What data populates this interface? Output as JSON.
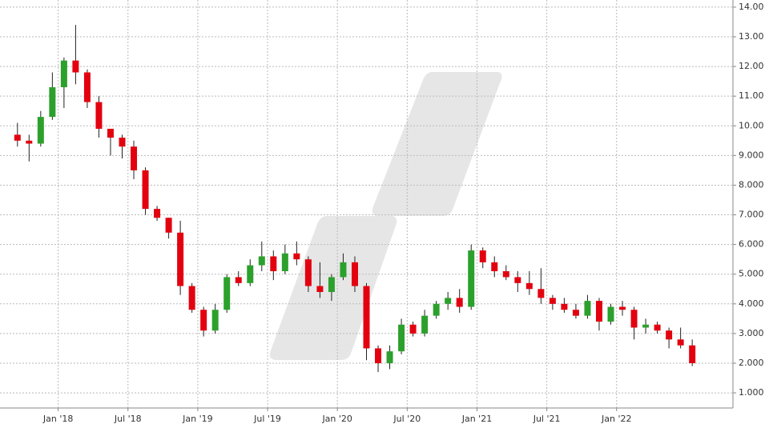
{
  "chart_data": {
    "type": "candlestick",
    "x": [
      "2017-09",
      "2017-10",
      "2017-11",
      "2017-12",
      "2018-01",
      "2018-02",
      "2018-03",
      "2018-04",
      "2018-05",
      "2018-06",
      "2018-07",
      "2018-08",
      "2018-09",
      "2018-10",
      "2018-11",
      "2018-12",
      "2019-01",
      "2019-02",
      "2019-03",
      "2019-04",
      "2019-05",
      "2019-06",
      "2019-07",
      "2019-08",
      "2019-09",
      "2019-10",
      "2019-11",
      "2019-12",
      "2020-01",
      "2020-02",
      "2020-03",
      "2020-04",
      "2020-05",
      "2020-06",
      "2020-07",
      "2020-08",
      "2020-09",
      "2020-10",
      "2020-11",
      "2020-12",
      "2021-01",
      "2021-02",
      "2021-03",
      "2021-04",
      "2021-05",
      "2021-06",
      "2021-07",
      "2021-08",
      "2021-09",
      "2021-10",
      "2021-11",
      "2021-12",
      "2022-01",
      "2022-02",
      "2022-03",
      "2022-04",
      "2022-05",
      "2022-06",
      "2022-07"
    ],
    "open": [
      9.7,
      9.5,
      9.4,
      10.3,
      11.3,
      12.2,
      11.8,
      10.8,
      9.9,
      9.6,
      9.3,
      8.5,
      7.2,
      6.9,
      6.4,
      4.6,
      3.8,
      3.1,
      3.8,
      4.9,
      4.7,
      5.3,
      5.6,
      5.1,
      5.7,
      5.5,
      4.6,
      4.4,
      4.9,
      5.4,
      4.6,
      2.5,
      2.0,
      2.4,
      3.3,
      3.0,
      3.6,
      4.0,
      4.2,
      3.9,
      5.8,
      5.4,
      5.1,
      4.9,
      4.7,
      4.5,
      4.2,
      4.0,
      3.8,
      3.6,
      4.1,
      3.4,
      3.9,
      3.8,
      3.2,
      3.3,
      3.1,
      2.8,
      2.6
    ],
    "high": [
      10.1,
      9.7,
      10.5,
      11.8,
      12.3,
      13.4,
      11.9,
      11.0,
      9.9,
      9.7,
      9.5,
      8.6,
      7.3,
      6.9,
      6.8,
      4.7,
      3.9,
      4.0,
      5.0,
      5.1,
      5.5,
      6.1,
      5.8,
      6.0,
      6.1,
      5.6,
      5.4,
      5.0,
      5.7,
      5.6,
      4.7,
      2.6,
      2.6,
      3.5,
      3.4,
      3.8,
      4.1,
      4.4,
      4.5,
      6.0,
      5.9,
      5.6,
      5.3,
      5.1,
      5.1,
      5.2,
      4.3,
      4.2,
      4.0,
      4.3,
      4.2,
      4.0,
      4.1,
      3.9,
      3.5,
      3.4,
      3.2,
      3.2,
      2.8
    ],
    "low": [
      9.3,
      8.8,
      9.3,
      10.2,
      10.6,
      11.4,
      10.6,
      9.6,
      9.0,
      8.9,
      8.2,
      7.0,
      6.8,
      6.2,
      4.3,
      3.7,
      2.9,
      3.0,
      3.7,
      4.6,
      4.6,
      5.1,
      4.8,
      5.0,
      5.3,
      4.4,
      4.2,
      4.1,
      4.8,
      4.4,
      2.1,
      1.7,
      1.8,
      2.3,
      2.9,
      2.9,
      3.5,
      3.8,
      3.7,
      3.8,
      5.2,
      4.9,
      4.8,
      4.4,
      4.3,
      4.0,
      3.8,
      3.7,
      3.5,
      3.5,
      3.1,
      3.3,
      3.6,
      2.8,
      3.0,
      3.0,
      2.5,
      2.5,
      1.9
    ],
    "close": [
      9.5,
      9.4,
      10.3,
      11.3,
      12.2,
      11.8,
      10.8,
      9.9,
      9.6,
      9.3,
      8.5,
      7.2,
      6.9,
      6.4,
      4.6,
      3.8,
      3.1,
      3.8,
      4.9,
      4.7,
      5.3,
      5.6,
      5.1,
      5.7,
      5.5,
      4.6,
      4.4,
      4.9,
      5.4,
      4.6,
      2.5,
      2.0,
      2.4,
      3.3,
      3.0,
      3.6,
      4.0,
      4.2,
      3.9,
      5.8,
      5.4,
      5.1,
      4.9,
      4.7,
      4.5,
      4.2,
      4.0,
      3.8,
      3.6,
      4.1,
      3.4,
      3.9,
      3.8,
      3.2,
      3.3,
      3.1,
      2.8,
      2.6,
      2.0
    ],
    "up_color": "#2ca02c",
    "down_color": "#e3000f",
    "xlim": [
      "2017-08",
      "2022-11"
    ],
    "xticks": [
      {
        "value": "2018-01",
        "label": "Jan '18"
      },
      {
        "value": "2018-07",
        "label": "Jul '18"
      },
      {
        "value": "2019-01",
        "label": "Jan '19"
      },
      {
        "value": "2019-07",
        "label": "Jul '19"
      },
      {
        "value": "2020-01",
        "label": "Jan '20"
      },
      {
        "value": "2020-07",
        "label": "Jul '20"
      },
      {
        "value": "2021-01",
        "label": "Jan '21"
      },
      {
        "value": "2021-07",
        "label": "Jul '21"
      },
      {
        "value": "2022-01",
        "label": "Jan '22"
      }
    ],
    "ylim": [
      0.49,
      14.24
    ],
    "yticks": [
      {
        "value": 1,
        "label": "1.000"
      },
      {
        "value": 2,
        "label": "2.000"
      },
      {
        "value": 3,
        "label": "3.000"
      },
      {
        "value": 4,
        "label": "4.000"
      },
      {
        "value": 5,
        "label": "5.000"
      },
      {
        "value": 6,
        "label": "6.000"
      },
      {
        "value": 7,
        "label": "7.000"
      },
      {
        "value": 8,
        "label": "8.000"
      },
      {
        "value": 9,
        "label": "9.000"
      },
      {
        "value": 10,
        "label": "10.00"
      },
      {
        "value": 11,
        "label": "11.00"
      },
      {
        "value": 12,
        "label": "12.00"
      },
      {
        "value": 13,
        "label": "13.00"
      },
      {
        "value": 14,
        "label": "14.00"
      }
    ],
    "grid": true
  }
}
